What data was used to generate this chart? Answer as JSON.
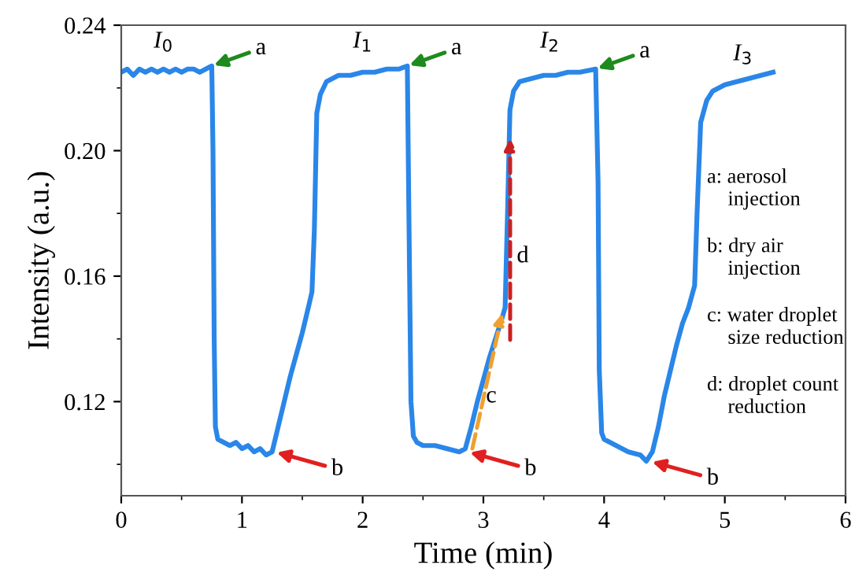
{
  "chart_data": {
    "type": "line",
    "xlabel": "Time (min)",
    "ylabel": "Intensity (a.u.)",
    "xlim": [
      0,
      6
    ],
    "xticks": [
      0,
      1,
      2,
      3,
      4,
      5,
      6
    ],
    "ylim": [
      0.09,
      0.24
    ],
    "yticks": [
      0.12,
      0.16,
      {
        "value": 0.2,
        "label": "0.20"
      },
      0.24
    ],
    "grid": false,
    "legend": false,
    "marker": "none",
    "line_style": "solid",
    "series": [
      {
        "color": "#2a86e8",
        "x": [
          0,
          0.05,
          0.1,
          0.15,
          0.2,
          0.25,
          0.3,
          0.35,
          0.4,
          0.45,
          0.5,
          0.55,
          0.6,
          0.65,
          0.7,
          0.75,
          0.76,
          0.77,
          0.78,
          0.8,
          0.85,
          0.9,
          0.95,
          1.0,
          1.05,
          1.1,
          1.15,
          1.2,
          1.25,
          1.3,
          1.35,
          1.4,
          1.45,
          1.5,
          1.55,
          1.58,
          1.6,
          1.62,
          1.65,
          1.7,
          1.8,
          1.9,
          2.0,
          2.1,
          2.2,
          2.3,
          2.37,
          2.38,
          2.4,
          2.42,
          2.45,
          2.5,
          2.6,
          2.7,
          2.8,
          2.85,
          2.9,
          2.95,
          3.0,
          3.05,
          3.1,
          3.15,
          3.18,
          3.2,
          3.22,
          3.25,
          3.3,
          3.4,
          3.5,
          3.6,
          3.7,
          3.8,
          3.93,
          3.95,
          3.96,
          3.98,
          4.0,
          4.1,
          4.2,
          4.3,
          4.35,
          4.4,
          4.45,
          4.5,
          4.55,
          4.6,
          4.65,
          4.7,
          4.75,
          4.77,
          4.8,
          4.85,
          4.9,
          5.0,
          5.1,
          5.2,
          5.3,
          5.4
        ],
        "values": [
          0.225,
          0.226,
          0.224,
          0.226,
          0.225,
          0.226,
          0.225,
          0.226,
          0.225,
          0.226,
          0.225,
          0.226,
          0.226,
          0.225,
          0.226,
          0.227,
          0.2,
          0.14,
          0.112,
          0.108,
          0.107,
          0.106,
          0.107,
          0.105,
          0.106,
          0.104,
          0.105,
          0.103,
          0.104,
          0.112,
          0.12,
          0.128,
          0.135,
          0.142,
          0.15,
          0.155,
          0.175,
          0.212,
          0.218,
          0.222,
          0.224,
          0.224,
          0.225,
          0.225,
          0.226,
          0.226,
          0.227,
          0.19,
          0.12,
          0.109,
          0.107,
          0.106,
          0.106,
          0.105,
          0.104,
          0.105,
          0.112,
          0.12,
          0.127,
          0.134,
          0.14,
          0.146,
          0.15,
          0.18,
          0.213,
          0.219,
          0.222,
          0.223,
          0.224,
          0.224,
          0.225,
          0.225,
          0.226,
          0.19,
          0.13,
          0.11,
          0.108,
          0.106,
          0.104,
          0.103,
          0.101,
          0.104,
          0.112,
          0.122,
          0.13,
          0.138,
          0.145,
          0.15,
          0.157,
          0.18,
          0.209,
          0.216,
          0.219,
          0.221,
          0.222,
          0.223,
          0.224,
          0.225
        ]
      }
    ],
    "annotations": [
      {
        "text": "I$_{0}$",
        "x": 0.35,
        "y": 0.227
      },
      {
        "text": "I$_{1}$",
        "x": 2.0,
        "y": 0.227
      },
      {
        "text": "I$_{2}$",
        "x": 3.55,
        "y": 0.227
      },
      {
        "text": "I$_{3}$",
        "x": 5.15,
        "y": 0.223
      },
      {
        "text": "a",
        "x": 0.75,
        "y": 0.227
      },
      {
        "text": "a",
        "x": 2.37,
        "y": 0.227
      },
      {
        "text": "a",
        "x": 3.93,
        "y": 0.226
      },
      {
        "text": "b",
        "x": 1.27,
        "y": 0.104
      },
      {
        "text": "b",
        "x": 2.87,
        "y": 0.104
      },
      {
        "text": "b",
        "x": 4.38,
        "y": 0.101
      },
      "c",
      "d",
      "a: aerosol\n    injection",
      "b: dry air\n    injection",
      "c: water droplet\n    size reduction",
      "d: droplet count\n    reduction"
    ]
  }
}
